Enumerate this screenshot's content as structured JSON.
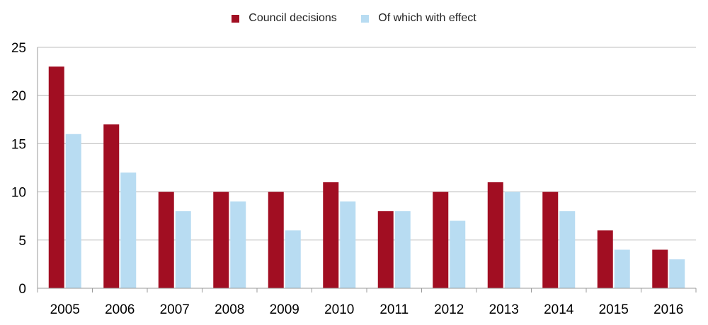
{
  "chart_data": {
    "type": "bar",
    "categories": [
      "2005",
      "2006",
      "2007",
      "2008",
      "2009",
      "2010",
      "2011",
      "2012",
      "2013",
      "2014",
      "2015",
      "2016"
    ],
    "series": [
      {
        "name": "Council decisions",
        "color": "#a10e22",
        "values": [
          23,
          17,
          10,
          10,
          10,
          11,
          8,
          10,
          11,
          10,
          6,
          4
        ]
      },
      {
        "name": "Of which with effect",
        "color": "#b8dcf2",
        "values": [
          16,
          12,
          8,
          9,
          6,
          9,
          8,
          7,
          10,
          8,
          4,
          3
        ]
      }
    ],
    "yticks": [
      "0",
      "5",
      "10",
      "15",
      "20",
      "25"
    ],
    "ylim": [
      0,
      25
    ],
    "grid": true,
    "legend_position": "top-center"
  }
}
